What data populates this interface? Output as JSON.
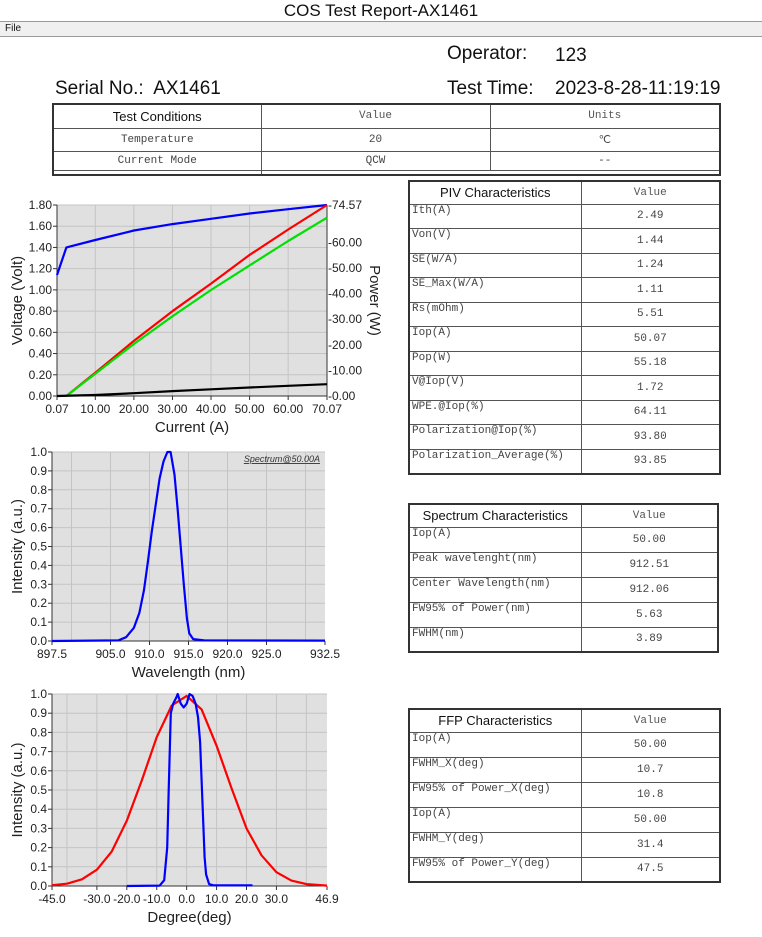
{
  "window": {
    "title": "COS Test Report-AX1461"
  },
  "menu": {
    "file": "File"
  },
  "header": {
    "operator_label": "Operator:",
    "operator": "123",
    "serial_label": "Serial No.:",
    "serial": "AX1461",
    "test_time_label": "Test Time:",
    "test_time": "2023-8-28-11:19:19"
  },
  "conditions": {
    "headers": [
      "Test Conditions",
      "Value",
      "Units"
    ],
    "rows": [
      [
        "Temperature",
        "20",
        "℃"
      ],
      [
        "Current Mode",
        "QCW",
        "--"
      ]
    ]
  },
  "piv": {
    "headers": [
      "PIV Characteristics",
      "Value"
    ],
    "rows": [
      [
        "Ith(A)",
        "2.49"
      ],
      [
        "Von(V)",
        "1.44"
      ],
      [
        "SE(W/A)",
        "1.24"
      ],
      [
        "SE_Max(W/A)",
        "1.11"
      ],
      [
        "Rs(mOhm)",
        "5.51"
      ],
      [
        "Iop(A)",
        "50.07"
      ],
      [
        "Pop(W)",
        "55.18"
      ],
      [
        "V@Iop(V)",
        "1.72"
      ],
      [
        "WPE.@Iop(%)",
        "64.11"
      ],
      [
        "Polarization@Iop(%)",
        "93.80"
      ],
      [
        "Polarization_Average(%)",
        "93.85"
      ]
    ]
  },
  "spectrum": {
    "headers": [
      "Spectrum Characteristics",
      "Value"
    ],
    "rows": [
      [
        "Iop(A)",
        "50.00"
      ],
      [
        "Peak wavelenght(nm)",
        "912.51"
      ],
      [
        "Center Wavelength(nm)",
        "912.06"
      ],
      [
        "FW95% of Power(nm)",
        "5.63"
      ],
      [
        "FWHM(nm)",
        "3.89"
      ]
    ]
  },
  "ffp": {
    "headers": [
      "FFP Characteristics",
      "Value"
    ],
    "rows": [
      [
        "Iop(A)",
        "50.00"
      ],
      [
        "FWHM_X(deg)",
        "10.7"
      ],
      [
        "FW95% of Power_X(deg)",
        "10.8"
      ],
      [
        "Iop(A)",
        "50.00"
      ],
      [
        "FWHM_Y(deg)",
        "31.4"
      ],
      [
        "FW95% of Power_Y(deg)",
        "47.5"
      ]
    ]
  },
  "chart_data": [
    {
      "type": "line",
      "xlabel": "Current (A)",
      "ylabel": "Voltage (Volt)",
      "y2label": "Power (W)",
      "xlim": [
        0.07,
        70.07
      ],
      "ylim": [
        0,
        1.8
      ],
      "y2lim": [
        0,
        74.57
      ],
      "xticks": [
        "0.07",
        "10.00",
        "20.00",
        "30.00",
        "40.00",
        "50.00",
        "60.00",
        "70.07"
      ],
      "xtick_values": [
        0.07,
        10,
        20,
        30,
        40,
        50,
        60,
        70.07
      ],
      "yticks": [
        "0.00",
        "0.20",
        "0.40",
        "0.60",
        "0.80",
        "1.00",
        "1.20",
        "1.40",
        "1.60",
        "1.80"
      ],
      "y2ticks": [
        "-0.00",
        "-10.00",
        "-20.00",
        "-30.00",
        "-40.00",
        "-50.00",
        "-60.00",
        "-74.57"
      ],
      "y2tick_values": [
        0,
        10,
        20,
        30,
        40,
        50,
        60,
        74.57
      ],
      "grid": true,
      "series": [
        {
          "axis": "y",
          "color": "#0000ff",
          "x": [
            0.07,
            2.5,
            10,
            20,
            30,
            40,
            50,
            60,
            70.07
          ],
          "y": [
            1.14,
            1.4,
            1.47,
            1.56,
            1.62,
            1.67,
            1.72,
            1.76,
            1.8
          ]
        },
        {
          "axis": "y2",
          "color": "#ff0000",
          "x": [
            2.5,
            10,
            20,
            30,
            40,
            50,
            60,
            70.07
          ],
          "y": [
            0,
            9.1,
            21.5,
            33.1,
            43.9,
            55.1,
            65.0,
            74.57
          ]
        },
        {
          "axis": "y2",
          "color": "#00e000",
          "x": [
            2.5,
            10,
            20,
            30,
            40,
            50,
            60,
            70.07
          ],
          "y": [
            0,
            8.7,
            20.3,
            31.1,
            41.4,
            51.0,
            60.5,
            69.6
          ]
        },
        {
          "axis": "y2",
          "color": "#000000",
          "x": [
            0.07,
            10,
            20,
            30,
            40,
            50,
            60,
            70.07
          ],
          "y": [
            0,
            0.4,
            1.1,
            1.9,
            2.6,
            3.3,
            4.0,
            4.6
          ]
        }
      ]
    },
    {
      "type": "line",
      "xlabel": "Wavelength (nm)",
      "ylabel": "Intensity (a.u.)",
      "annotation": "Spectrum@50.00A",
      "xlim": [
        897.5,
        932.5
      ],
      "ylim": [
        0,
        1.0
      ],
      "xticks": [
        "897.5",
        "905.0",
        "910.0",
        "915.0",
        "920.0",
        "925.0",
        "932.5"
      ],
      "xtick_values": [
        897.5,
        905,
        910,
        915,
        920,
        925,
        932.5
      ],
      "xgrid": [
        900,
        905,
        910,
        915,
        920,
        925,
        930
      ],
      "yticks": [
        "0.0",
        "0.1",
        "0.2",
        "0.3",
        "0.4",
        "0.5",
        "0.6",
        "0.7",
        "0.8",
        "0.9",
        "1.0"
      ],
      "grid": true,
      "series": [
        {
          "color": "#0000ff",
          "x": [
            897.5,
            906,
            907,
            908,
            908.7,
            909.3,
            909.8,
            910.3,
            910.8,
            911.3,
            911.8,
            912.3,
            912.7,
            913.2,
            913.6,
            914.0,
            914.4,
            914.8,
            915.1,
            915.6,
            917,
            932.5
          ],
          "y": [
            0,
            0.003,
            0.02,
            0.07,
            0.15,
            0.27,
            0.42,
            0.58,
            0.72,
            0.86,
            0.95,
            1.0,
            1.0,
            0.88,
            0.7,
            0.5,
            0.3,
            0.12,
            0.04,
            0.01,
            0.003,
            0.002
          ]
        }
      ]
    },
    {
      "type": "line",
      "xlabel": "Degree(deg)",
      "ylabel": "Intensity (a.u.)",
      "xlim": [
        -45,
        46.9
      ],
      "ylim": [
        0,
        1.0
      ],
      "xticks": [
        "-45.0",
        "-30.0",
        "-20.0",
        "-10.0",
        "0.0",
        "10.0",
        "20.0",
        "30.0",
        "46.9"
      ],
      "xtick_values": [
        -45,
        -30,
        -20,
        -10,
        0,
        10,
        20,
        30,
        46.9
      ],
      "xgrid": [
        -40,
        -30,
        -20,
        -10,
        0,
        10,
        20,
        30,
        40
      ],
      "yticks": [
        "0.0",
        "0.1",
        "0.2",
        "0.3",
        "0.4",
        "0.5",
        "0.6",
        "0.7",
        "0.8",
        "0.9",
        "1.0"
      ],
      "grid": true,
      "series": [
        {
          "color": "#ff0000",
          "x": [
            -45,
            -40,
            -35,
            -30,
            -25,
            -20,
            -15,
            -10,
            -5,
            0,
            5,
            10,
            15,
            20,
            25,
            30,
            35,
            40,
            46.9
          ],
          "y": [
            0.004,
            0.012,
            0.035,
            0.085,
            0.18,
            0.34,
            0.55,
            0.775,
            0.94,
            0.99,
            0.92,
            0.73,
            0.51,
            0.3,
            0.16,
            0.072,
            0.028,
            0.01,
            0.002
          ]
        },
        {
          "color": "#0000ff",
          "x": [
            -20,
            -9,
            -7.5,
            -6.5,
            -6,
            -5.3,
            -4.5,
            -3.5,
            -3,
            -2,
            -1,
            0,
            1,
            2,
            3,
            3.8,
            4.5,
            5,
            5.5,
            6,
            6.5,
            7.5,
            9,
            22
          ],
          "y": [
            0,
            0.002,
            0.03,
            0.2,
            0.5,
            0.9,
            0.95,
            0.98,
            1.0,
            0.95,
            0.93,
            0.95,
            1.0,
            0.99,
            0.95,
            0.88,
            0.75,
            0.55,
            0.35,
            0.15,
            0.06,
            0.01,
            0.003,
            0.003
          ]
        }
      ]
    }
  ]
}
